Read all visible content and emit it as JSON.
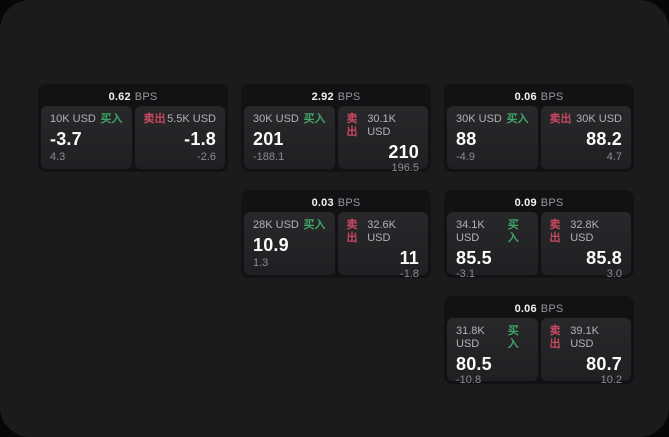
{
  "colors": {
    "buy_accent": "#3fa565",
    "sell_accent": "#c9485f",
    "frame_bg": "#1b1b1d",
    "card_bg": "#121214",
    "panel_bg": "#242427"
  },
  "cards": [
    {
      "bps": "0.62",
      "unit": "BPS",
      "layout": {
        "col": 1,
        "row": 1
      },
      "buy": {
        "side": "买入",
        "amount": "10K USD",
        "value": "-3.7",
        "sub": "4.3"
      },
      "sell": {
        "side": "卖出",
        "amount": "5.5K USD",
        "value": "-1.8",
        "sub": "-2.6"
      }
    },
    {
      "bps": "2.92",
      "unit": "BPS",
      "layout": {
        "col": 2,
        "row": 1
      },
      "buy": {
        "side": "买入",
        "amount": "30K USD",
        "value": "201",
        "sub": "-188.1"
      },
      "sell": {
        "side": "卖出",
        "amount": "30.1K USD",
        "value": "210",
        "sub": "196.5"
      }
    },
    {
      "bps": "0.06",
      "unit": "BPS",
      "layout": {
        "col": 3,
        "row": 1
      },
      "buy": {
        "side": "买入",
        "amount": "30K USD",
        "value": "88",
        "sub": "-4.9"
      },
      "sell": {
        "side": "卖出",
        "amount": "30K USD",
        "value": "88.2",
        "sub": "4.7"
      }
    },
    {
      "bps": "0.03",
      "unit": "BPS",
      "layout": {
        "col": 2,
        "row": 2
      },
      "buy": {
        "side": "买入",
        "amount": "28K USD",
        "value": "10.9",
        "sub": "1.3"
      },
      "sell": {
        "side": "卖出",
        "amount": "32.6K USD",
        "value": "11",
        "sub": "-1.8"
      }
    },
    {
      "bps": "0.09",
      "unit": "BPS",
      "layout": {
        "col": 3,
        "row": 2
      },
      "buy": {
        "side": "买入",
        "amount": "34.1K USD",
        "value": "85.5",
        "sub": "-3.1"
      },
      "sell": {
        "side": "卖出",
        "amount": "32.8K USD",
        "value": "85.8",
        "sub": "3.0"
      }
    },
    {
      "bps": "0.06",
      "unit": "BPS",
      "layout": {
        "col": 3,
        "row": 3
      },
      "buy": {
        "side": "买入",
        "amount": "31.8K USD",
        "value": "80.5",
        "sub": "-10.8"
      },
      "sell": {
        "side": "卖出",
        "amount": "39.1K USD",
        "value": "80.7",
        "sub": "10.2"
      }
    }
  ]
}
